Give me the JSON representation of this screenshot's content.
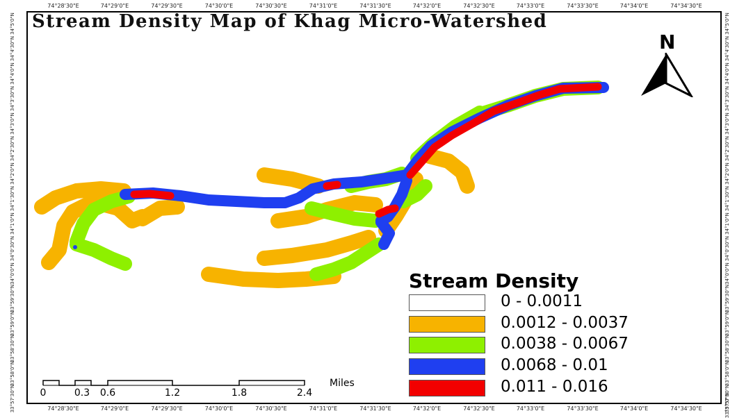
{
  "title": "Stream Density Map of Khag Micro-Watershed",
  "longitude_ticks": [
    "74°28'30\"E",
    "74°29'0\"E",
    "74°29'30\"E",
    "74°30'0\"E",
    "74°30'30\"E",
    "74°31'0\"E",
    "74°31'30\"E",
    "74°32'0\"E",
    "74°32'30\"E",
    "74°33'0\"E",
    "74°33'30\"E",
    "74°34'0\"E",
    "74°34'30\"E"
  ],
  "latitude_ticks": [
    "34°5'0\"N",
    "34°4'30\"N",
    "34°4'0\"N",
    "34°3'30\"N",
    "34°3'0\"N",
    "34°2'30\"N",
    "34°2'0\"N",
    "34°1'30\"N",
    "34°1'0\"N",
    "34°0'30\"N",
    "34°0'0\"N",
    "33°59'30\"N",
    "33°59'0\"N",
    "33°58'30\"N",
    "33°58'0\"N",
    "33°57'30\"N",
    "33°57'0\"N"
  ],
  "north_arrow": {
    "label": "N",
    "icon": "north-arrow-icon"
  },
  "legend": {
    "title": "Stream Density",
    "classes": [
      {
        "label": "0 - 0.0011",
        "color": "#ffffff"
      },
      {
        "label": "0.0012 - 0.0037",
        "color": "#f7b300"
      },
      {
        "label": "0.0038 - 0.0067",
        "color": "#8ef000"
      },
      {
        "label": "0.0068 - 0.01",
        "color": "#1f3ff0"
      },
      {
        "label": "0.011 - 0.016",
        "color": "#f20000"
      }
    ]
  },
  "scale_bar": {
    "ticks": [
      "0",
      "0.3",
      "0.6",
      "1.2",
      "1.8",
      "2.4"
    ],
    "unit": "Miles"
  }
}
